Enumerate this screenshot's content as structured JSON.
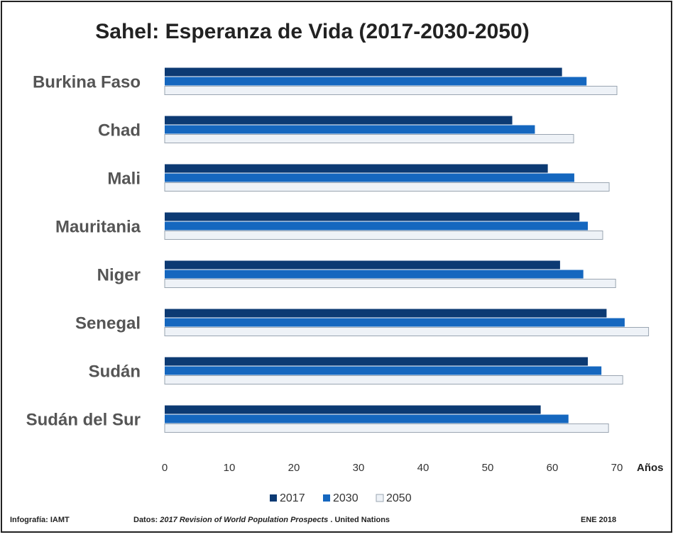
{
  "chart_data": {
    "type": "bar",
    "orientation": "horizontal",
    "title": "Sahel: Esperanza de Vida (2017-2030-2050)",
    "categories": [
      "Burkina Faso",
      "Chad",
      "Mali",
      "Mauritania",
      "Niger",
      "Senegal",
      "Sudán",
      "Sudán del Sur"
    ],
    "series": [
      {
        "name": "2017",
        "color": "#0c3a73",
        "values": [
          61.5,
          53.8,
          59.3,
          64.2,
          61.2,
          68.4,
          65.5,
          58.2
        ]
      },
      {
        "name": "2030",
        "color": "#1567bf",
        "values": [
          65.3,
          57.3,
          63.4,
          65.5,
          64.8,
          71.2,
          67.6,
          62.5
        ]
      },
      {
        "name": "2050",
        "color": "#eef2f7",
        "values": [
          70.0,
          63.3,
          68.8,
          67.8,
          69.8,
          74.9,
          70.9,
          68.7
        ]
      }
    ],
    "xlim": [
      0,
      75
    ],
    "xticks": [
      0,
      10,
      20,
      30,
      40,
      50,
      60,
      70
    ],
    "x_label": "Años",
    "legend": "bottom",
    "grid": false
  },
  "footer": {
    "credit": "Infografía: IAMT",
    "source_label": "Datos:",
    "source_title": "2017 Revision of World Population Prospects",
    "source_org": ". United Nations",
    "date": "ENE 2018"
  }
}
